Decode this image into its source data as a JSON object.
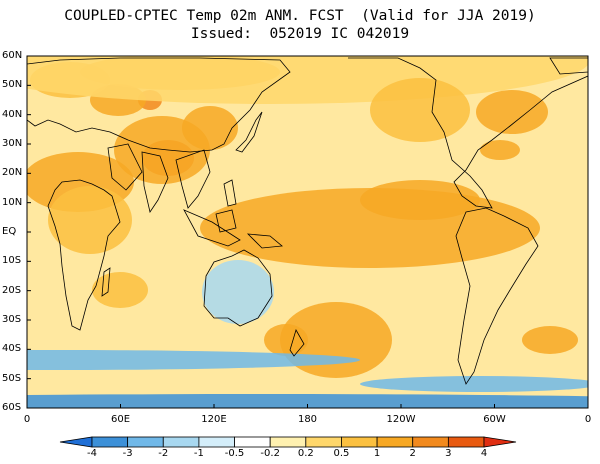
{
  "title": {
    "line1": "COUPLED-CPTEC Temp 02m ANM. FCST  (Valid for JJA 2019)",
    "line2": "Issued:  052019 IC 042019"
  },
  "map": {
    "projection": "equirectangular",
    "lon_range": [
      0,
      360
    ],
    "lat_range": [
      -60,
      60
    ],
    "lat_labels": [
      "60N",
      "50N",
      "40N",
      "30N",
      "20N",
      "10N",
      "EQ",
      "10S",
      "20S",
      "30S",
      "40S",
      "50S",
      "60S"
    ],
    "lon_labels": [
      "0",
      "60E",
      "120E",
      "180",
      "120W",
      "60W",
      "0"
    ],
    "background_anomaly_color": "#FFE8A0",
    "anomaly_regions": [
      {
        "name": "tibet-warm",
        "value": 2.5,
        "color": "#F28A1E"
      },
      {
        "name": "india-bay-warm",
        "value": 1.5,
        "color": "#F7A824"
      },
      {
        "name": "east-asia-warm",
        "value": 1.5,
        "color": "#F7A824"
      },
      {
        "name": "siberia-warm",
        "value": 1.2,
        "color": "#FBC040"
      },
      {
        "name": "north-pacific-warm",
        "value": 0.8,
        "color": "#FFD76B"
      },
      {
        "name": "central-pacific-warm",
        "value": 1.5,
        "color": "#F7A824"
      },
      {
        "name": "north-america-west-warm",
        "value": 1.2,
        "color": "#FBC040"
      },
      {
        "name": "north-america-east-warm",
        "value": 1.5,
        "color": "#F7A824"
      },
      {
        "name": "africa-warm",
        "value": 1.2,
        "color": "#FBC040"
      },
      {
        "name": "south-pacific-warm",
        "value": 1.5,
        "color": "#F7A824"
      },
      {
        "name": "australia-cool",
        "value": -0.5,
        "color": "#A8D8F0"
      },
      {
        "name": "southern-ocean-cool",
        "value": -1.0,
        "color": "#70B8E8"
      },
      {
        "name": "antarctic-cool",
        "value": -2.0,
        "color": "#3C90D8"
      }
    ]
  },
  "colorbar": {
    "labels": [
      "-4",
      "-3",
      "-2",
      "-1",
      "-0.5",
      "-0.2",
      "0.2",
      "0.5",
      "1",
      "2",
      "3",
      "4"
    ],
    "colors": [
      "#1F6FD6",
      "#3C90D8",
      "#70B8E8",
      "#A8D8F0",
      "#D4EEFA",
      "#FFFFFF",
      "#FFF1B0",
      "#FFD76B",
      "#FBC040",
      "#F7A824",
      "#F28A1E",
      "#E85A10",
      "#E02E12"
    ]
  }
}
